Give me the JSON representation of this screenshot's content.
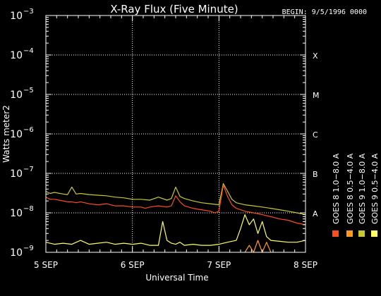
{
  "chart_data": {
    "type": "line",
    "title": "X-Ray Flux (Five Minute)",
    "begin_label": "BEGIN: 9/5/1996 0000",
    "xlabel": "Universal Time",
    "ylabel": "Watts meter2",
    "y_scale": "log",
    "ylim": [
      1e-09,
      0.001
    ],
    "y_ticks": [
      {
        "exp": -9,
        "base": "10",
        "sup": "−9"
      },
      {
        "exp": -8,
        "base": "10",
        "sup": "−8"
      },
      {
        "exp": -7,
        "base": "10",
        "sup": "−7"
      },
      {
        "exp": -6,
        "base": "10",
        "sup": "−6"
      },
      {
        "exp": -5,
        "base": "10",
        "sup": "−5"
      },
      {
        "exp": -4,
        "base": "10",
        "sup": "−4"
      },
      {
        "exp": -3,
        "base": "10",
        "sup": "−3"
      }
    ],
    "x_ticks": [
      {
        "day": 0,
        "label": "5 SEP"
      },
      {
        "day": 1,
        "label": "6 SEP"
      },
      {
        "day": 2,
        "label": "7 SEP"
      },
      {
        "day": 3,
        "label": "8 SEP"
      }
    ],
    "flare_classes": [
      {
        "label": "X",
        "exp": -4
      },
      {
        "label": "M",
        "exp": -5
      },
      {
        "label": "C",
        "exp": -6
      },
      {
        "label": "B",
        "exp": -7
      },
      {
        "label": "A",
        "exp": -8
      }
    ],
    "grid": "dotted",
    "legend": [
      {
        "text": "GOES 8 1.0−8.0 A",
        "color": "#ff4b1e"
      },
      {
        "text": "GOES 8 0.5−4.0 A",
        "color": "#ff9a1e"
      },
      {
        "text": "GOES 9 1.0−8.0 A",
        "color": "#c8c832"
      },
      {
        "text": "GOES 9 0.5−4.0 A",
        "color": "#ffff64"
      }
    ],
    "series": [
      {
        "name": "GOES 8 1.0−8.0 A",
        "color": "#ff4b1e",
        "x": [
          0,
          0.05,
          0.1,
          0.2,
          0.25,
          0.3,
          0.35,
          0.4,
          0.5,
          0.6,
          0.7,
          0.8,
          0.9,
          1.0,
          1.1,
          1.15,
          1.2,
          1.3,
          1.4,
          1.45,
          1.5,
          1.55,
          1.6,
          1.7,
          1.8,
          1.9,
          1.95,
          2.0,
          2.05,
          2.1,
          2.15,
          2.2,
          2.3,
          2.4,
          2.5,
          2.6,
          2.7,
          2.8,
          2.9,
          3.0
        ],
        "y": [
          2.5e-08,
          2.2e-08,
          2.2e-08,
          2e-08,
          1.9e-08,
          1.9e-08,
          1.8e-08,
          1.9e-08,
          1.7e-08,
          1.6e-08,
          1.7e-08,
          1.5e-08,
          1.5e-08,
          1.4e-08,
          1.4e-08,
          1.3e-08,
          1.4e-08,
          1.5e-08,
          1.4e-08,
          1.5e-08,
          2.7e-08,
          1.9e-08,
          1.5e-08,
          1.3e-08,
          1.2e-08,
          1.1e-08,
          1e-08,
          1.1e-08,
          5e-08,
          2.6e-08,
          1.6e-08,
          1.3e-08,
          1.1e-08,
          1e-08,
          9e-09,
          8e-09,
          7e-09,
          6.5e-09,
          5.5e-09,
          5e-09
        ]
      },
      {
        "name": "GOES 8 0.5−4.0 A",
        "color": "#ff9a1e",
        "x": [
          2.3,
          2.35,
          2.4,
          2.45,
          2.5,
          2.55,
          2.6
        ],
        "y": [
          1e-09,
          1.5e-09,
          1e-09,
          2e-09,
          1e-09,
          1.8e-09,
          1e-09
        ]
      },
      {
        "name": "GOES 9 1.0−8.0 A",
        "color": "#c8c832",
        "x": [
          0,
          0.05,
          0.1,
          0.2,
          0.25,
          0.3,
          0.35,
          0.4,
          0.5,
          0.6,
          0.7,
          0.8,
          0.9,
          1.0,
          1.1,
          1.2,
          1.3,
          1.4,
          1.45,
          1.5,
          1.55,
          1.6,
          1.7,
          1.8,
          1.9,
          2.0,
          2.05,
          2.1,
          2.15,
          2.2,
          2.3,
          2.4,
          2.5,
          2.6,
          2.7,
          2.8,
          2.9,
          3.0
        ],
        "y": [
          3.5e-08,
          3.1e-08,
          3.3e-08,
          3e-08,
          2.9e-08,
          4.5e-08,
          3e-08,
          3.1e-08,
          2.9e-08,
          2.8e-08,
          2.7e-08,
          2.5e-08,
          2.4e-08,
          2.2e-08,
          2.2e-08,
          2.1e-08,
          2.5e-08,
          2.1e-08,
          2.3e-08,
          4.5e-08,
          2.6e-08,
          2.3e-08,
          2e-08,
          1.8e-08,
          1.7e-08,
          1.6e-08,
          5.5e-08,
          3.5e-08,
          2.2e-08,
          1.8e-08,
          1.6e-08,
          1.5e-08,
          1.4e-08,
          1.3e-08,
          1.2e-08,
          1.1e-08,
          1e-08,
          9e-09
        ]
      },
      {
        "name": "GOES 9 0.5−4.0 A",
        "color": "#ffff64",
        "x": [
          0,
          0.1,
          0.2,
          0.3,
          0.4,
          0.5,
          0.6,
          0.7,
          0.8,
          0.9,
          1.0,
          1.1,
          1.2,
          1.3,
          1.35,
          1.4,
          1.45,
          1.5,
          1.55,
          1.6,
          1.7,
          1.8,
          1.9,
          2.0,
          2.1,
          2.2,
          2.25,
          2.3,
          2.35,
          2.4,
          2.45,
          2.5,
          2.55,
          2.6,
          2.7,
          2.8,
          2.9,
          3.0
        ],
        "y": [
          1.8e-09,
          1.6e-09,
          1.7e-09,
          1.6e-09,
          2e-09,
          1.6e-09,
          1.7e-09,
          1.8e-09,
          1.6e-09,
          1.7e-09,
          1.6e-09,
          1.7e-09,
          1.5e-09,
          1.5e-09,
          6e-09,
          2e-09,
          1.7e-09,
          1.6e-09,
          1.8e-09,
          1.5e-09,
          1.6e-09,
          1.5e-09,
          1.5e-09,
          1.6e-09,
          1.8e-09,
          2e-09,
          4e-09,
          9e-09,
          5e-09,
          7e-09,
          3e-09,
          6e-09,
          2.5e-09,
          2e-09,
          1.9e-09,
          1.8e-09,
          1.8e-09,
          2e-09
        ]
      }
    ]
  }
}
